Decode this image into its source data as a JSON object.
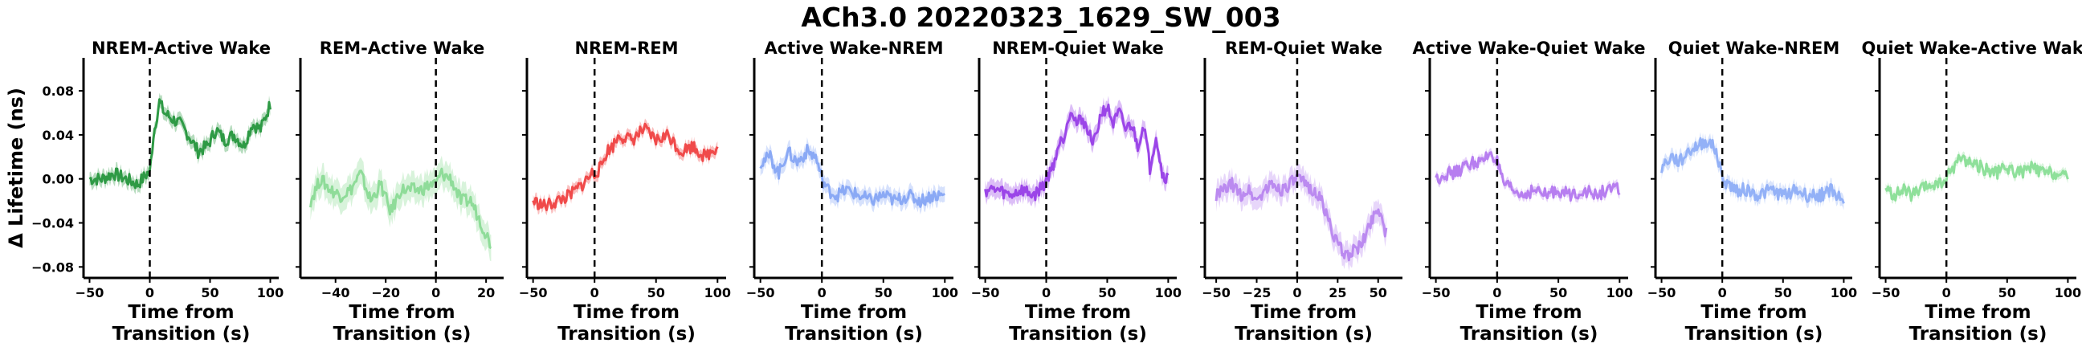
{
  "figure_title": "ACh3.0 20220323_1629_SW_003",
  "colors": {
    "nrem_active_wake": "#2e9a45",
    "rem_active_wake": "#8fdc99",
    "nrem_rem": "#f04a4a",
    "active_wake_nrem": "#8aa9f5",
    "nrem_quiet_wake": "#9b45e8",
    "rem_quiet_wake": "#bb8af0",
    "active_wake_quiet_wake": "#b77ef0",
    "quiet_wake_nrem": "#93b1f7",
    "quiet_wake_active_wake": "#8ee09a"
  },
  "chart_data": [
    {
      "type": "line",
      "title": "NREM-Active Wake",
      "xlabel": "Time from\nTransition (s)",
      "ylabel": "Δ Lifetime (ns)",
      "xlim": [
        -55,
        107
      ],
      "ylim": [
        -0.09,
        0.11
      ],
      "xticks": [
        "−50",
        "0",
        "50",
        "100"
      ],
      "xtick_values": [
        -50,
        0,
        50,
        100
      ],
      "yticks": [
        "−0.08",
        "−0.04",
        "0.00",
        "0.04",
        "0.08"
      ],
      "ytick_values": [
        -0.08,
        -0.04,
        0.0,
        0.04,
        0.08
      ],
      "transition_line": 0,
      "color_key": "nrem_active_wake",
      "band": 0.006,
      "series": [
        {
          "x": [
            -50,
            -40,
            -30,
            -20,
            -10,
            -2,
            0,
            3,
            8,
            12,
            18,
            25,
            32,
            40,
            48,
            55,
            62,
            70,
            78,
            85,
            92,
            100
          ],
          "y": [
            0.0,
            0.0,
            0.005,
            0.0,
            -0.005,
            0.005,
            0.005,
            0.04,
            0.07,
            0.06,
            0.055,
            0.05,
            0.04,
            0.025,
            0.03,
            0.045,
            0.035,
            0.04,
            0.03,
            0.05,
            0.045,
            0.068
          ]
        }
      ]
    },
    {
      "type": "line",
      "title": "REM-Active Wake",
      "xlabel": "Time from\nTransition (s)",
      "ylabel": "",
      "xlim": [
        -54,
        27
      ],
      "ylim": [
        -0.09,
        0.11
      ],
      "xticks": [
        "−40",
        "−20",
        "0",
        "20"
      ],
      "xtick_values": [
        -40,
        -20,
        0,
        20
      ],
      "yticks": [],
      "ytick_values": [],
      "transition_line": 0,
      "color_key": "rem_active_wake",
      "band": 0.012,
      "series": [
        {
          "x": [
            -50,
            -46,
            -42,
            -38,
            -34,
            -30,
            -26,
            -22,
            -18,
            -14,
            -10,
            -6,
            -2,
            0,
            2,
            6,
            10,
            14,
            18,
            22
          ],
          "y": [
            -0.02,
            0.0,
            -0.01,
            -0.015,
            -0.01,
            0.005,
            -0.02,
            -0.005,
            -0.03,
            -0.01,
            -0.01,
            -0.01,
            -0.005,
            -0.005,
            0.005,
            0.0,
            -0.02,
            -0.02,
            -0.04,
            -0.06
          ]
        }
      ]
    },
    {
      "type": "line",
      "title": "NREM-REM",
      "xlabel": "Time from\nTransition (s)",
      "ylabel": "",
      "xlim": [
        -55,
        107
      ],
      "ylim": [
        -0.09,
        0.11
      ],
      "xticks": [
        "−50",
        "0",
        "50",
        "100"
      ],
      "xtick_values": [
        -50,
        0,
        50,
        100
      ],
      "yticks": [],
      "ytick_values": [],
      "transition_line": 0,
      "color_key": "nrem_rem",
      "band": 0.005,
      "series": [
        {
          "x": [
            -50,
            -40,
            -30,
            -20,
            -10,
            -2,
            0,
            5,
            10,
            15,
            20,
            30,
            40,
            50,
            60,
            70,
            80,
            90,
            100
          ],
          "y": [
            -0.02,
            -0.025,
            -0.02,
            -0.015,
            -0.005,
            0.005,
            0.005,
            0.01,
            0.025,
            0.03,
            0.04,
            0.035,
            0.045,
            0.035,
            0.04,
            0.025,
            0.03,
            0.02,
            0.03
          ]
        }
      ]
    },
    {
      "type": "line",
      "title": "Active Wake-NREM",
      "xlabel": "Time from\nTransition (s)",
      "ylabel": "",
      "xlim": [
        -55,
        107
      ],
      "ylim": [
        -0.09,
        0.11
      ],
      "xticks": [
        "−50",
        "0",
        "50",
        "100"
      ],
      "xtick_values": [
        -50,
        0,
        50,
        100
      ],
      "yticks": [],
      "ytick_values": [],
      "transition_line": 0,
      "color_key": "active_wake_nrem",
      "band": 0.007,
      "series": [
        {
          "x": [
            -50,
            -42,
            -35,
            -28,
            -20,
            -12,
            -5,
            0,
            5,
            12,
            20,
            30,
            40,
            50,
            60,
            70,
            80,
            90,
            100
          ],
          "y": [
            0.015,
            0.02,
            0.005,
            0.025,
            0.015,
            0.025,
            0.02,
            0.0,
            -0.01,
            -0.015,
            -0.01,
            -0.015,
            -0.02,
            -0.015,
            -0.02,
            -0.015,
            -0.02,
            -0.015,
            -0.015
          ]
        }
      ]
    },
    {
      "type": "line",
      "title": "NREM-Quiet Wake",
      "xlabel": "Time from\nTransition (s)",
      "ylabel": "",
      "xlim": [
        -55,
        107
      ],
      "ylim": [
        -0.09,
        0.11
      ],
      "xticks": [
        "−50",
        "0",
        "50",
        "100"
      ],
      "xtick_values": [
        -50,
        0,
        50,
        100
      ],
      "yticks": [],
      "ytick_values": [],
      "transition_line": 0,
      "color_key": "nrem_quiet_wake",
      "band": 0.008,
      "series": [
        {
          "x": [
            -50,
            -40,
            -30,
            -20,
            -10,
            -2,
            0,
            5,
            10,
            15,
            20,
            25,
            30,
            35,
            40,
            45,
            50,
            55,
            60,
            65,
            70,
            75,
            80,
            85,
            90,
            95,
            100
          ],
          "y": [
            -0.01,
            -0.01,
            -0.015,
            -0.01,
            -0.015,
            -0.005,
            0.0,
            0.01,
            0.03,
            0.04,
            0.065,
            0.05,
            0.055,
            0.04,
            0.035,
            0.06,
            0.065,
            0.05,
            0.06,
            0.045,
            0.05,
            0.03,
            0.05,
            0.01,
            0.04,
            0.005,
            0.0
          ]
        }
      ]
    },
    {
      "type": "line",
      "title": "REM-Quiet Wake",
      "xlabel": "Time from\nTransition (s)",
      "ylabel": "",
      "xlim": [
        -57,
        65
      ],
      "ylim": [
        -0.09,
        0.11
      ],
      "xticks": [
        "−50",
        "−25",
        "0",
        "25",
        "50"
      ],
      "xtick_values": [
        -50,
        -25,
        0,
        25,
        50
      ],
      "yticks": [],
      "ytick_values": [],
      "transition_line": 0,
      "color_key": "rem_quiet_wake",
      "band": 0.01,
      "series": [
        {
          "x": [
            -50,
            -45,
            -40,
            -35,
            -30,
            -25,
            -20,
            -15,
            -10,
            -5,
            0,
            5,
            10,
            15,
            20,
            25,
            30,
            35,
            40,
            45,
            50,
            55
          ],
          "y": [
            -0.015,
            -0.01,
            -0.005,
            -0.015,
            -0.01,
            -0.02,
            -0.01,
            -0.005,
            -0.01,
            -0.005,
            0.0,
            -0.005,
            -0.01,
            -0.02,
            -0.04,
            -0.06,
            -0.07,
            -0.065,
            -0.06,
            -0.04,
            -0.025,
            -0.05
          ]
        }
      ]
    },
    {
      "type": "line",
      "title": "Active Wake-Quiet Wake",
      "xlabel": "Time from\nTransition (s)",
      "ylabel": "",
      "xlim": [
        -55,
        107
      ],
      "ylim": [
        -0.09,
        0.11
      ],
      "xticks": [
        "−50",
        "0",
        "50",
        "100"
      ],
      "xtick_values": [
        -50,
        0,
        50,
        100
      ],
      "yticks": [],
      "ytick_values": [],
      "transition_line": 0,
      "color_key": "active_wake_quiet_wake",
      "band": 0.004,
      "series": [
        {
          "x": [
            -50,
            -42,
            -35,
            -28,
            -20,
            -12,
            -5,
            0,
            5,
            12,
            20,
            30,
            40,
            50,
            60,
            70,
            80,
            90,
            100
          ],
          "y": [
            0.0,
            0.005,
            0.005,
            0.01,
            0.015,
            0.015,
            0.025,
            0.015,
            -0.005,
            -0.01,
            -0.015,
            -0.01,
            -0.015,
            -0.01,
            -0.015,
            -0.01,
            -0.015,
            -0.01,
            -0.01
          ]
        }
      ]
    },
    {
      "type": "line",
      "title": "Quiet Wake-NREM",
      "xlabel": "Time from\nTransition (s)",
      "ylabel": "",
      "xlim": [
        -55,
        107
      ],
      "ylim": [
        -0.09,
        0.11
      ],
      "xticks": [
        "−50",
        "0",
        "50",
        "100"
      ],
      "xtick_values": [
        -50,
        0,
        50,
        100
      ],
      "yticks": [],
      "ytick_values": [],
      "transition_line": 0,
      "color_key": "quiet_wake_nrem",
      "band": 0.006,
      "series": [
        {
          "x": [
            -50,
            -42,
            -35,
            -28,
            -20,
            -12,
            -5,
            0,
            5,
            12,
            20,
            30,
            40,
            50,
            60,
            70,
            80,
            90,
            100
          ],
          "y": [
            0.01,
            0.02,
            0.015,
            0.025,
            0.03,
            0.035,
            0.025,
            0.0,
            -0.005,
            -0.01,
            -0.01,
            -0.015,
            -0.01,
            -0.015,
            -0.01,
            -0.015,
            -0.015,
            -0.01,
            -0.02
          ]
        }
      ]
    },
    {
      "type": "line",
      "title": "Quiet Wake-Active Wake",
      "xlabel": "Time from\nTransition (s)",
      "ylabel": "",
      "xlim": [
        -55,
        107
      ],
      "ylim": [
        -0.09,
        0.11
      ],
      "xticks": [
        "−50",
        "0",
        "50",
        "100"
      ],
      "xtick_values": [
        -50,
        0,
        50,
        100
      ],
      "yticks": [],
      "ytick_values": [],
      "transition_line": 0,
      "color_key": "quiet_wake_active_wake",
      "band": 0.004,
      "series": [
        {
          "x": [
            -50,
            -42,
            -35,
            -28,
            -20,
            -12,
            -5,
            0,
            5,
            12,
            20,
            30,
            40,
            50,
            60,
            70,
            80,
            90,
            100
          ],
          "y": [
            -0.01,
            -0.015,
            -0.01,
            -0.015,
            -0.01,
            -0.005,
            -0.005,
            0.0,
            0.01,
            0.02,
            0.015,
            0.01,
            0.005,
            0.01,
            0.005,
            0.01,
            0.005,
            0.005,
            0.0
          ]
        }
      ]
    }
  ]
}
